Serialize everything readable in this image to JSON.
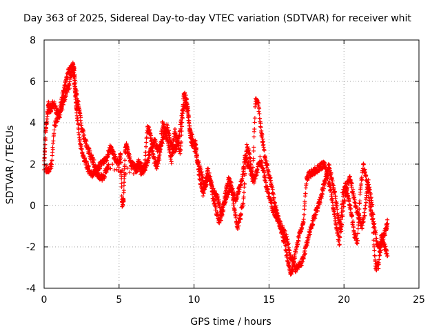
{
  "chart_data": {
    "type": "scatter",
    "title": "Day 363 of 2025, Sidereal Day-to-day VTEC variation (SDTVAR) for receiver whit",
    "xlabel": "GPS time / hours",
    "ylabel": "SDTVAR / TECUs",
    "xlim": [
      0,
      25
    ],
    "ylim": [
      -4,
      8
    ],
    "xticks": [
      "0",
      "5",
      "10",
      "15",
      "20",
      "25"
    ],
    "yticks": [
      "-4",
      "-2",
      "0",
      "2",
      "4",
      "6",
      "8"
    ],
    "grid": true,
    "marker": "+",
    "color": "#ff0000",
    "series": [
      {
        "name": "SDTVAR",
        "x": [
          0.0,
          0.1,
          0.2,
          0.3,
          0.4,
          0.5,
          0.6,
          0.8,
          1.0,
          1.2,
          1.4,
          1.6,
          1.8,
          2.0,
          2.1,
          2.2,
          2.4,
          2.6,
          2.8,
          3.0,
          3.2,
          3.4,
          3.6,
          3.8,
          4.0,
          4.2,
          4.4,
          4.6,
          4.8,
          5.0,
          5.1,
          5.2,
          5.3,
          5.4,
          5.5,
          5.6,
          5.8,
          6.0,
          6.2,
          6.4,
          6.6,
          6.8,
          7.0,
          7.2,
          7.4,
          7.6,
          7.8,
          8.0,
          8.2,
          8.4,
          8.6,
          8.8,
          9.0,
          9.2,
          9.4,
          9.6,
          9.8,
          10.0,
          10.1,
          10.2,
          10.4,
          10.6,
          10.8,
          11.0,
          11.2,
          11.4,
          11.6,
          11.8,
          12.0,
          12.2,
          12.4,
          12.6,
          12.8,
          13.0,
          13.2,
          13.4,
          13.6,
          13.8,
          14.0,
          14.2,
          14.4,
          14.6,
          14.8,
          15.0,
          15.2,
          15.4,
          15.6,
          15.8,
          16.0,
          16.2,
          16.4,
          16.6,
          16.8,
          17.0,
          17.2,
          17.4,
          17.6,
          17.8,
          18.0,
          18.2,
          18.4,
          18.6,
          18.8,
          19.0,
          19.2,
          19.4,
          19.6,
          19.8,
          20.0,
          20.2,
          20.4,
          20.6,
          20.8,
          21.0,
          21.2,
          21.4,
          21.6,
          21.8,
          22.0,
          22.2,
          22.4,
          22.6,
          22.8,
          22.9
        ],
        "y": [
          1.9,
          3.5,
          4.3,
          4.9,
          4.6,
          4.8,
          5.0,
          4.6,
          4.4,
          5.2,
          5.8,
          6.4,
          6.7,
          6.2,
          5.2,
          4.3,
          3.0,
          2.4,
          2.0,
          1.7,
          1.5,
          1.6,
          1.8,
          2.0,
          2.1,
          2.3,
          2.8,
          2.5,
          2.2,
          2.0,
          2.5,
          0.1,
          0.2,
          2.6,
          2.9,
          2.5,
          2.0,
          1.9,
          1.8,
          2.0,
          1.7,
          1.9,
          2.4,
          2.8,
          3.2,
          2.6,
          2.9,
          3.4,
          3.8,
          3.2,
          2.6,
          2.8,
          3.3,
          4.4,
          5.0,
          4.6,
          3.1,
          2.9,
          3.0,
          2.3,
          1.2,
          0.6,
          1.1,
          1.5,
          0.9,
          0.5,
          0.3,
          -0.4,
          0.1,
          0.5,
          0.9,
          0.6,
          0.3,
          0.8,
          1.2,
          2.4,
          2.0,
          1.6,
          1.2,
          1.6,
          2.2,
          1.8,
          1.0,
          0.5,
          -0.1,
          -0.4,
          -0.7,
          -1.0,
          -1.3,
          -1.6,
          -2.4,
          -2.7,
          -3.1,
          -2.9,
          -2.7,
          -2.2,
          -1.6,
          -1.1,
          -0.6,
          -0.2,
          0.2,
          0.8,
          1.4,
          1.9,
          1.2,
          0.5,
          -0.5,
          -1.2,
          0.2,
          1.0,
          1.4,
          0.6,
          -0.1,
          -0.6,
          -1.0,
          -0.3,
          1.2,
          0.4,
          -0.8,
          -1.8,
          -2.2,
          -1.6,
          -1.2,
          -0.8
        ]
      },
      {
        "name": "SDTVAR",
        "x": [
          0.1,
          0.3,
          0.5,
          0.7,
          0.9,
          1.1,
          1.3,
          1.5,
          1.7,
          1.9,
          2.0,
          2.1,
          2.3,
          2.5,
          2.7,
          2.9,
          3.1,
          3.3,
          3.5,
          3.7,
          3.9,
          4.1,
          4.3,
          6.1,
          6.3,
          6.5,
          6.7,
          6.9,
          7.1,
          7.3,
          7.5,
          7.7,
          7.9,
          8.1,
          8.3,
          8.5,
          8.7,
          8.9,
          9.1,
          9.3,
          9.5,
          9.7,
          9.9,
          10.3,
          10.5,
          10.7,
          10.9,
          11.1,
          11.3,
          11.5,
          11.7,
          11.9,
          12.1,
          12.3,
          12.5,
          12.7,
          12.9,
          13.1,
          13.3,
          13.5,
          13.7,
          13.9,
          14.1,
          14.3,
          14.5,
          14.7,
          14.9,
          15.1,
          15.3,
          15.5,
          15.7,
          15.9,
          16.1,
          16.3,
          16.5,
          16.7,
          16.9,
          17.1,
          17.3,
          17.5,
          17.7,
          17.9,
          18.1,
          18.3,
          18.5,
          18.7,
          18.9,
          19.1,
          19.3,
          19.5,
          19.7,
          19.9,
          20.1,
          20.3,
          20.5,
          20.7,
          20.9,
          21.1,
          21.3,
          21.5,
          21.7,
          21.9,
          22.1,
          22.3,
          22.5,
          22.7,
          22.9
        ],
        "y": [
          1.8,
          1.7,
          2.0,
          3.9,
          4.2,
          4.5,
          5.0,
          5.5,
          5.8,
          6.8,
          6.6,
          5.6,
          4.8,
          3.8,
          3.2,
          2.8,
          2.4,
          2.1,
          1.6,
          1.4,
          1.3,
          1.6,
          1.9,
          1.6,
          2.1,
          1.5,
          1.9,
          3.8,
          3.4,
          2.3,
          1.9,
          2.4,
          4.0,
          3.5,
          2.9,
          2.2,
          3.6,
          3.1,
          2.6,
          5.4,
          5.1,
          3.7,
          3.2,
          2.0,
          1.5,
          0.9,
          1.7,
          1.3,
          0.2,
          -0.3,
          -0.8,
          -0.4,
          0.6,
          1.2,
          1.0,
          -0.3,
          -1.0,
          -0.5,
          0.3,
          2.8,
          2.5,
          1.3,
          5.2,
          4.8,
          3.5,
          2.5,
          1.8,
          1.2,
          0.4,
          -0.3,
          -0.9,
          -1.4,
          -2.0,
          -2.9,
          -3.3,
          -2.5,
          -1.8,
          -1.2,
          -0.8,
          1.3,
          1.5,
          1.6,
          1.7,
          1.8,
          1.9,
          2.0,
          1.4,
          0.8,
          -0.2,
          -1.1,
          -1.8,
          0.5,
          1.0,
          0.3,
          -0.4,
          -1.4,
          -1.8,
          0.9,
          1.9,
          1.3,
          0.2,
          -0.6,
          -3.0,
          -2.9,
          -1.4,
          -2.0,
          -2.3
        ]
      }
    ]
  }
}
